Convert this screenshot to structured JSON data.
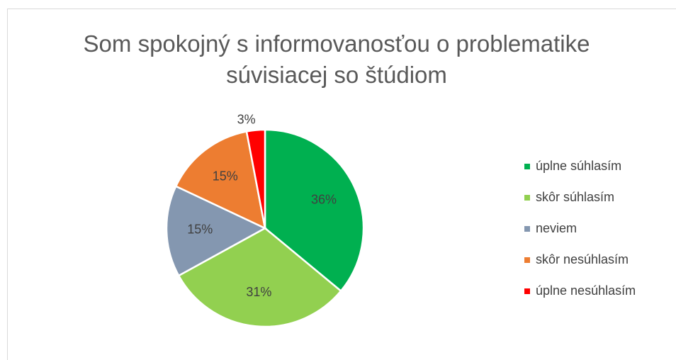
{
  "chart_data": {
    "type": "pie",
    "title": "Som spokojný s informovanosťou o problematike súvisiacej so štúdiom",
    "categories": [
      "úplne súhlasím",
      "skôr súhlasím",
      "neviem",
      "skôr nesúhlasím",
      "úplne nesúhlasím"
    ],
    "values": [
      36,
      31,
      15,
      15,
      3
    ],
    "value_labels": [
      "36%",
      "31%",
      "15%",
      "15%",
      "3%"
    ],
    "colors": [
      "#00b050",
      "#92d050",
      "#8497b0",
      "#ed7d31",
      "#ff0000"
    ],
    "legend": "right"
  }
}
